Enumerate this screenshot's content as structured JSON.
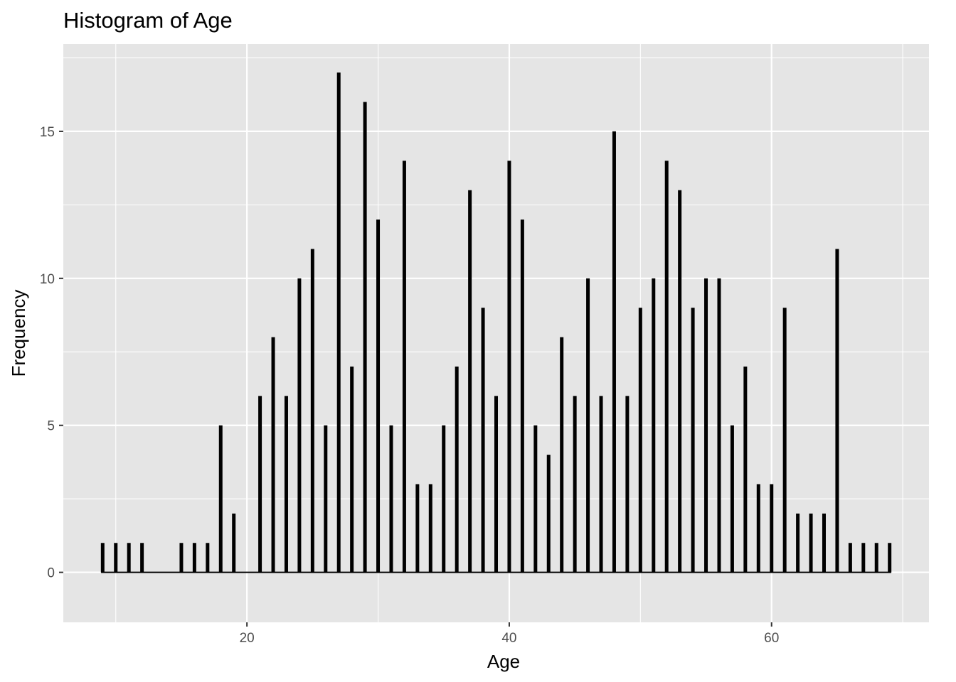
{
  "chart_data": {
    "type": "bar",
    "title": "Histogram of Age",
    "xlabel": "Age",
    "ylabel": "Frequency",
    "xlim": [
      6,
      72
    ],
    "ylim": [
      -1.7,
      17.97
    ],
    "x_ticks": [
      20,
      40,
      60
    ],
    "y_ticks": [
      0,
      5,
      10,
      15
    ],
    "grid": true,
    "background": "#e5e5e5",
    "grid_color": "#ffffff",
    "bar_color": "#000000",
    "bins": [
      {
        "x": 9,
        "count": 1
      },
      {
        "x": 10,
        "count": 1
      },
      {
        "x": 11,
        "count": 1
      },
      {
        "x": 12,
        "count": 1
      },
      {
        "x": 13,
        "count": 0
      },
      {
        "x": 14,
        "count": 0
      },
      {
        "x": 15,
        "count": 1
      },
      {
        "x": 16,
        "count": 1
      },
      {
        "x": 17,
        "count": 1
      },
      {
        "x": 18,
        "count": 5
      },
      {
        "x": 19,
        "count": 2
      },
      {
        "x": 20,
        "count": 0
      },
      {
        "x": 21,
        "count": 6
      },
      {
        "x": 22,
        "count": 8
      },
      {
        "x": 23,
        "count": 6
      },
      {
        "x": 24,
        "count": 10
      },
      {
        "x": 25,
        "count": 11
      },
      {
        "x": 26,
        "count": 5
      },
      {
        "x": 27,
        "count": 17
      },
      {
        "x": 28,
        "count": 7
      },
      {
        "x": 29,
        "count": 16
      },
      {
        "x": 30,
        "count": 12
      },
      {
        "x": 31,
        "count": 5
      },
      {
        "x": 32,
        "count": 14
      },
      {
        "x": 33,
        "count": 3
      },
      {
        "x": 34,
        "count": 3
      },
      {
        "x": 35,
        "count": 5
      },
      {
        "x": 36,
        "count": 7
      },
      {
        "x": 37,
        "count": 13
      },
      {
        "x": 38,
        "count": 9
      },
      {
        "x": 39,
        "count": 6
      },
      {
        "x": 40,
        "count": 14
      },
      {
        "x": 41,
        "count": 12
      },
      {
        "x": 42,
        "count": 5
      },
      {
        "x": 43,
        "count": 4
      },
      {
        "x": 44,
        "count": 8
      },
      {
        "x": 45,
        "count": 6
      },
      {
        "x": 46,
        "count": 10
      },
      {
        "x": 47,
        "count": 6
      },
      {
        "x": 48,
        "count": 15
      },
      {
        "x": 49,
        "count": 6
      },
      {
        "x": 50,
        "count": 9
      },
      {
        "x": 51,
        "count": 10
      },
      {
        "x": 52,
        "count": 14
      },
      {
        "x": 53,
        "count": 13
      },
      {
        "x": 54,
        "count": 9
      },
      {
        "x": 55,
        "count": 10
      },
      {
        "x": 56,
        "count": 10
      },
      {
        "x": 57,
        "count": 5
      },
      {
        "x": 58,
        "count": 7
      },
      {
        "x": 59,
        "count": 3
      },
      {
        "x": 60,
        "count": 3
      },
      {
        "x": 61,
        "count": 9
      },
      {
        "x": 62,
        "count": 2
      },
      {
        "x": 63,
        "count": 2
      },
      {
        "x": 64,
        "count": 2
      },
      {
        "x": 65,
        "count": 11
      },
      {
        "x": 66,
        "count": 1
      },
      {
        "x": 67,
        "count": 1
      },
      {
        "x": 68,
        "count": 1
      },
      {
        "x": 69,
        "count": 1
      }
    ]
  }
}
